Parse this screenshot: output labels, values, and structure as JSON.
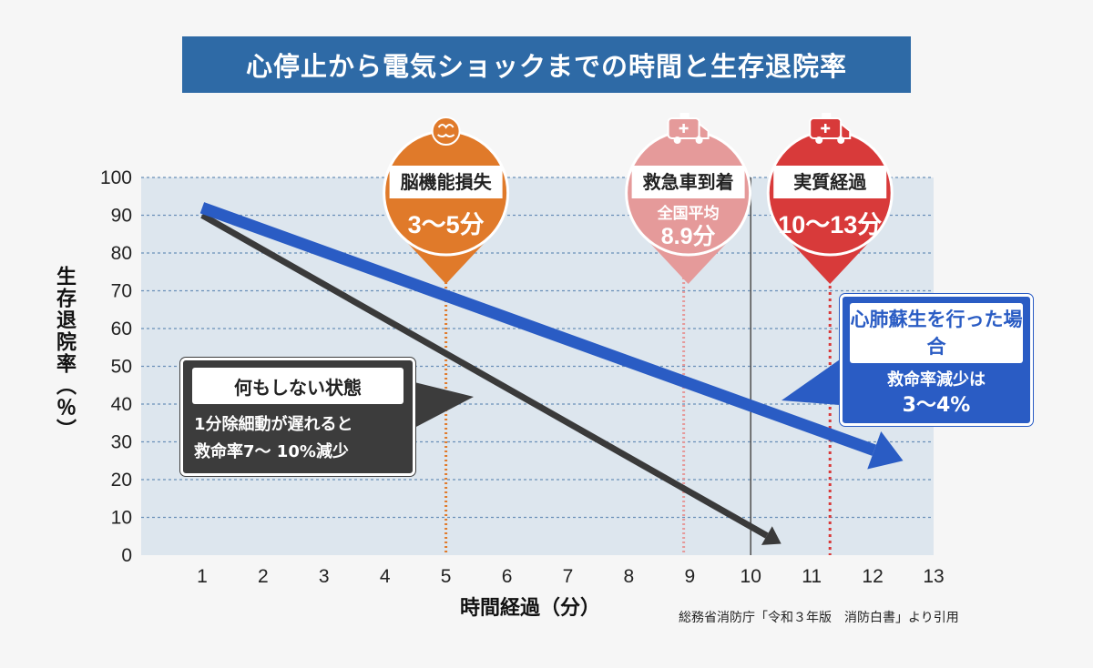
{
  "title": "心停止から電気ショックまでの時間と生存退院率",
  "source_note": "総務省消防庁「令和３年版　消防白書」より引用",
  "colors": {
    "title_bg": "#2e6aa6",
    "with_cpr_line": "#2a5cc4",
    "no_action_line": "#3a3a3a",
    "brain_pin": "#e07a2a",
    "ambulance_pin": "#e59a9a",
    "actual_pin": "#d83a3a"
  },
  "icons": {
    "brain": "brain-icon",
    "ambulance": "ambulance-icon"
  },
  "chart_data": {
    "type": "line",
    "xlabel": "時間経過（分）",
    "ylabel": "生存退院率（％）",
    "x_ticks": [
      1,
      2,
      3,
      4,
      5,
      6,
      7,
      8,
      9,
      10,
      11,
      12,
      13
    ],
    "y_ticks": [
      0,
      10,
      20,
      30,
      40,
      50,
      60,
      70,
      80,
      90,
      100
    ],
    "xlim": [
      0,
      13
    ],
    "ylim": [
      0,
      100
    ],
    "grid": true,
    "series": [
      {
        "name": "心肺蘇生を行った場合",
        "x": [
          1,
          12.5
        ],
        "y": [
          92,
          25
        ]
      },
      {
        "name": "何もしない状態",
        "x": [
          1,
          10.5
        ],
        "y": [
          90,
          3
        ]
      }
    ],
    "markers": [
      {
        "x": 5,
        "label": "脳機能損失",
        "value": "3～5分"
      },
      {
        "x": 8.9,
        "label": "救急車到着",
        "sub": "全国平均",
        "value": "8.9分"
      },
      {
        "x": 10,
        "label": "",
        "value": ""
      },
      {
        "x": 11.3,
        "label": "実質経過",
        "value": "10～13分"
      }
    ]
  },
  "callouts": {
    "no_action": {
      "title": "何もしない状態",
      "line1": "1分除細動が遅れると",
      "line2": "救命率7～ 10%減少"
    },
    "with_cpr": {
      "title": "心肺蘇生を行った場合",
      "line1": "救命率減少は",
      "line2": "3～4%"
    }
  }
}
